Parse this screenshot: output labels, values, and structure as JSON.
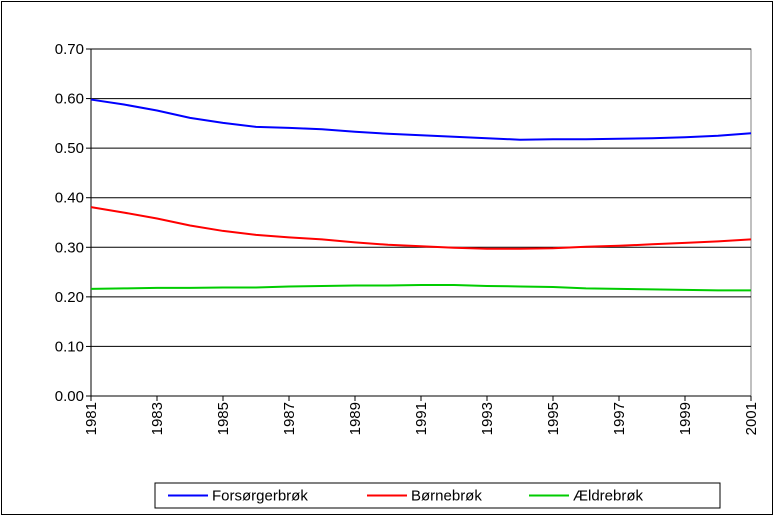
{
  "chart_data": {
    "type": "line",
    "x": [
      1981,
      1982,
      1983,
      1984,
      1985,
      1986,
      1987,
      1988,
      1989,
      1990,
      1991,
      1992,
      1993,
      1994,
      1995,
      1996,
      1997,
      1998,
      1999,
      2000,
      2001
    ],
    "series": [
      {
        "name": "Forsørgerbrøk",
        "color": "#0000ff",
        "values": [
          0.598,
          0.588,
          0.576,
          0.561,
          0.551,
          0.543,
          0.541,
          0.538,
          0.533,
          0.529,
          0.526,
          0.523,
          0.52,
          0.517,
          0.518,
          0.518,
          0.519,
          0.52,
          0.522,
          0.525,
          0.53
        ]
      },
      {
        "name": "Børnebrøk",
        "color": "#ff0000",
        "values": [
          0.381,
          0.37,
          0.358,
          0.344,
          0.333,
          0.325,
          0.32,
          0.316,
          0.31,
          0.305,
          0.302,
          0.299,
          0.297,
          0.297,
          0.298,
          0.301,
          0.303,
          0.306,
          0.309,
          0.312,
          0.316
        ]
      },
      {
        "name": "Ældrebrøk",
        "color": "#00cc00",
        "values": [
          0.216,
          0.217,
          0.218,
          0.218,
          0.219,
          0.219,
          0.221,
          0.222,
          0.223,
          0.223,
          0.224,
          0.224,
          0.222,
          0.221,
          0.22,
          0.217,
          0.216,
          0.215,
          0.214,
          0.213,
          0.213
        ]
      }
    ],
    "xlim": [
      1981,
      2001
    ],
    "xticks": [
      1981,
      1983,
      1985,
      1987,
      1989,
      1991,
      1993,
      1995,
      1997,
      1999,
      2001
    ],
    "ylim": [
      0,
      0.7
    ],
    "yticks": [
      {
        "value": 0,
        "label": "0.00"
      },
      {
        "value": 0.1,
        "label": "0.10"
      },
      {
        "value": 0.2,
        "label": "0.20"
      },
      {
        "value": 0.3,
        "label": "0.30"
      },
      {
        "value": 0.4,
        "label": "0.40"
      },
      {
        "value": 0.5,
        "label": "0.50"
      },
      {
        "value": 0.6,
        "label": "0.60"
      },
      {
        "value": 0.7,
        "label": "0.70"
      }
    ],
    "grid": true,
    "legend": "bottom"
  }
}
